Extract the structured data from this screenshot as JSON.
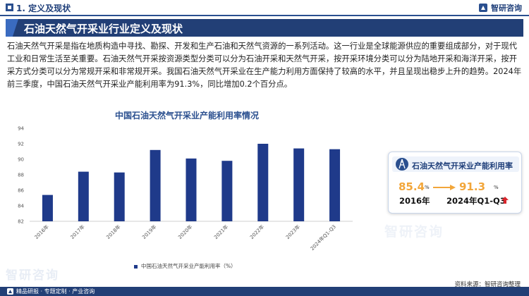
{
  "header": {
    "section_title": "1. 定义及现状",
    "logo_text": "智研咨询"
  },
  "banner": {
    "title": "石油天然气开采业行业定义及现状"
  },
  "intro_text": "石油天然气开采是指在地质构造中寻找、勘探、开发和生产石油和天然气资源的一系列活动。这一行业是全球能源供应的重要组成部分，对于现代工业和日常生活至关重要。石油天然气开采按资源类型分类可以分为石油开采和天然气开采，按开采环境分类可以分为陆地开采和海洋开采，按开采方式分类可以分为常规开采和非常规开采。我国石油天然气开采业在生产能力利用方面保持了较高的水平，并且呈现出稳步上升的趋势。2024年前三季度，中国石油天然气开采业产能利用率为91.3%，同比增加0.2个百分点。",
  "chart_data": {
    "type": "bar",
    "title": "中国石油天然气开采业产能利用率情况",
    "categories": [
      "2016年",
      "2017年",
      "2018年",
      "2019年",
      "2020年",
      "2021年",
      "2022年",
      "2023年",
      "2024年Q1-Q3"
    ],
    "series": [
      {
        "name": "中国石油天然气开采业产能利用率（%）",
        "values": [
          85.4,
          88.4,
          88.3,
          91.2,
          90.1,
          89.8,
          92.0,
          91.4,
          91.3
        ]
      }
    ],
    "ylim": [
      82,
      94
    ],
    "yticks": [
      82,
      84,
      86,
      88,
      90,
      92,
      94
    ],
    "grid": false,
    "legend_position": "bottom",
    "color": "#1f3a8a"
  },
  "card": {
    "title": "石油天然气开采业产能利用率",
    "left_value": "85.4",
    "left_unit": "%",
    "left_period": "2016年",
    "right_value": "91.3",
    "right_unit": "%",
    "right_period": "2024年Q1-Q3",
    "trend_icon": "up-arrow-icon",
    "value_color": "#f2a63a",
    "trend_color": "#d9262c"
  },
  "watermark": "智研咨询",
  "source_text": "资料来源：智研咨询整理",
  "footer": {
    "text": "精品研报 · 专题定制 · 产业咨询"
  },
  "colors": {
    "brand_navy": "#223f76",
    "bar": "#1f3a8a",
    "accent_orange": "#f2a63a"
  }
}
